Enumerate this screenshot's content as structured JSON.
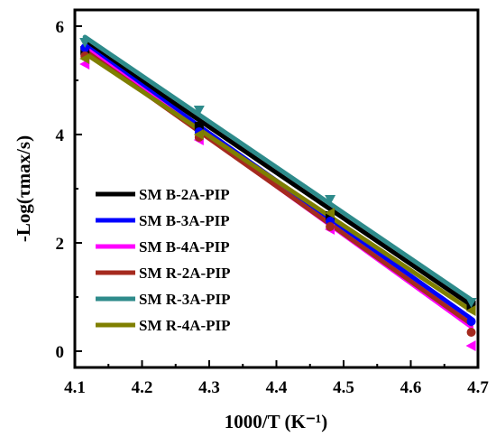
{
  "chart_data": {
    "type": "scatter",
    "xlabel": "1000/T (K⁻¹)",
    "ylabel": "-Log(τmax/s)",
    "xlim": [
      4.1,
      4.7
    ],
    "ylim": [
      -0.3,
      6.3
    ],
    "x_ticks": [
      "4.1",
      "4.2",
      "4.3",
      "4.4",
      "4.5",
      "4.6",
      "4.7"
    ],
    "y_ticks": [
      "0",
      "2",
      "4",
      "6"
    ],
    "legend_position": "middle-left",
    "fit_lines": true,
    "series": [
      {
        "name": "SM B-2A-PIP",
        "color": "#000000",
        "marker": "square",
        "points": [
          [
            4.115,
            5.55
          ],
          [
            4.285,
            4.15
          ],
          [
            4.48,
            2.5
          ],
          [
            4.69,
            0.85
          ]
        ],
        "fit": [
          [
            4.115,
            5.7
          ],
          [
            4.69,
            0.85
          ]
        ]
      },
      {
        "name": "SM B-3A-PIP",
        "color": "#0000ff",
        "marker": "circle",
        "points": [
          [
            4.115,
            5.6
          ],
          [
            4.285,
            4.05
          ],
          [
            4.48,
            2.4
          ],
          [
            4.69,
            0.55
          ]
        ],
        "fit": [
          [
            4.115,
            5.65
          ],
          [
            4.69,
            0.6
          ]
        ]
      },
      {
        "name": "SM B-4A-PIP",
        "color": "#ff00ff",
        "marker": "triangle-left",
        "points": [
          [
            4.115,
            5.3
          ],
          [
            4.285,
            3.9
          ],
          [
            4.48,
            2.25
          ],
          [
            4.69,
            0.1
          ]
        ],
        "fit": [
          [
            4.115,
            5.6
          ],
          [
            4.69,
            0.45
          ]
        ]
      },
      {
        "name": "SM R-2A-PIP",
        "color": "#a52a1e",
        "marker": "circle",
        "points": [
          [
            4.115,
            5.45
          ],
          [
            4.285,
            3.95
          ],
          [
            4.48,
            2.3
          ],
          [
            4.69,
            0.35
          ]
        ],
        "fit": [
          [
            4.115,
            5.55
          ],
          [
            4.69,
            0.5
          ]
        ]
      },
      {
        "name": "SM R-3A-PIP",
        "color": "#2e8b8b",
        "marker": "triangle-down",
        "points": [
          [
            4.115,
            5.7
          ],
          [
            4.285,
            4.45
          ],
          [
            4.48,
            2.8
          ],
          [
            4.69,
            0.9
          ]
        ],
        "fit": [
          [
            4.115,
            5.8
          ],
          [
            4.69,
            0.95
          ]
        ]
      },
      {
        "name": "SM R-4A-PIP",
        "color": "#7f7f00",
        "marker": "triangle-left",
        "points": [
          [
            4.115,
            5.4
          ],
          [
            4.285,
            4.0
          ],
          [
            4.48,
            2.55
          ],
          [
            4.69,
            0.75
          ]
        ],
        "fit": [
          [
            4.115,
            5.5
          ],
          [
            4.69,
            0.75
          ]
        ]
      }
    ]
  }
}
